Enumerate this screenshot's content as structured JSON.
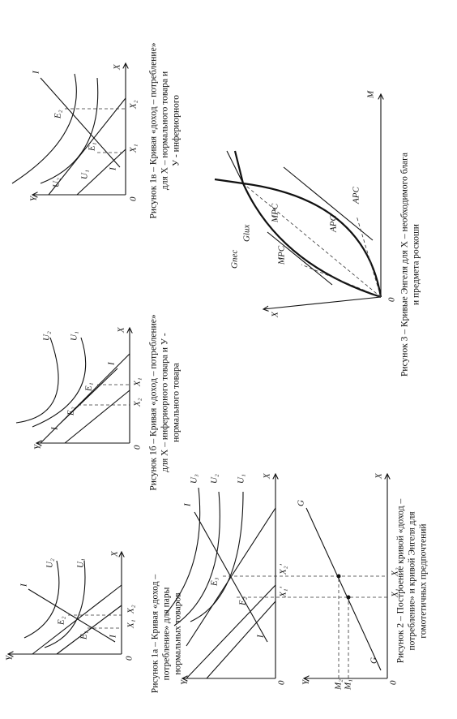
{
  "figures": [
    {
      "caption": [
        "Рисунок 1а – Кривая «доход –",
        "потребление» для пары",
        "нормальных товаров"
      ],
      "labels": [
        "Y",
        "X",
        "0",
        "U₂",
        "U₁",
        "I",
        "I",
        "E₂",
        "E₁",
        "X₁",
        "X₂"
      ]
    },
    {
      "caption": [
        "Рисунок 1б – Кривая «доход – потребление»",
        "для X – инфериорного товара и У -",
        "нормального товара"
      ],
      "labels": [
        "Y",
        "X",
        "0",
        "U₂",
        "U₁",
        "I",
        "I",
        "E₂",
        "E₁",
        "X₂",
        "X₁"
      ]
    },
    {
      "caption": [
        "Рисунок 1в – Кривая «доход – потребление»",
        "для X – нормального товара и",
        "У - инфериорного"
      ],
      "labels": [
        "Y",
        "X",
        "0",
        "U₂",
        "U₁",
        "I",
        "I",
        "E₂",
        "E₁",
        "X₁",
        "X₂"
      ]
    },
    {
      "caption": [
        "Рисунок 2 – Построение кривой «доход –",
        "потребление» и кривой Энгеля для",
        "гомотетичных предпочтений"
      ],
      "labels": [
        "Y",
        "X",
        "0",
        "U₃",
        "U₂",
        "U₁",
        "I",
        "I",
        "E₃",
        "E₂",
        "X₁′",
        "X₂′",
        "Y",
        "X",
        "0",
        "G",
        "G",
        "M₂",
        "M₁",
        "X₁",
        "X₂"
      ]
    },
    {
      "caption": [
        "Рисунок 3 – Кривые Энгеля для X – необходимого блага",
        "и предмета роскоши"
      ],
      "labels": [
        "X",
        "M",
        "0",
        "Gnec",
        "Glux",
        "MPC",
        "MPC",
        "APC",
        "APC"
      ]
    }
  ]
}
